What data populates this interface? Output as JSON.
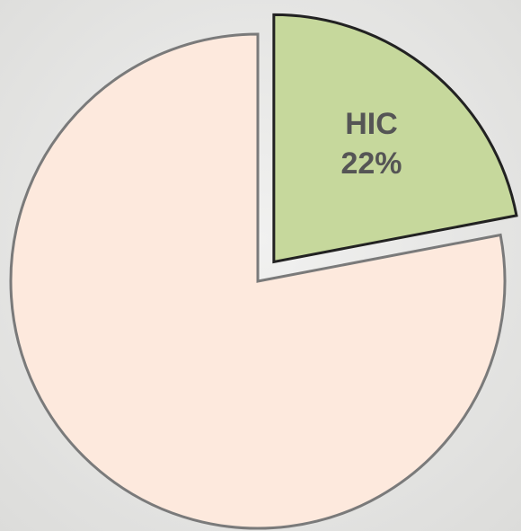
{
  "chart_data": {
    "type": "pie",
    "categories": [
      "HIC",
      null
    ],
    "values": [
      22,
      78
    ],
    "value_labels": [
      "22%",
      null
    ],
    "colors": [
      "#c6d89c",
      "#fde9dd"
    ],
    "strokes": [
      "#222222",
      "#7a7a7a"
    ],
    "explode": [
      true,
      false
    ]
  }
}
